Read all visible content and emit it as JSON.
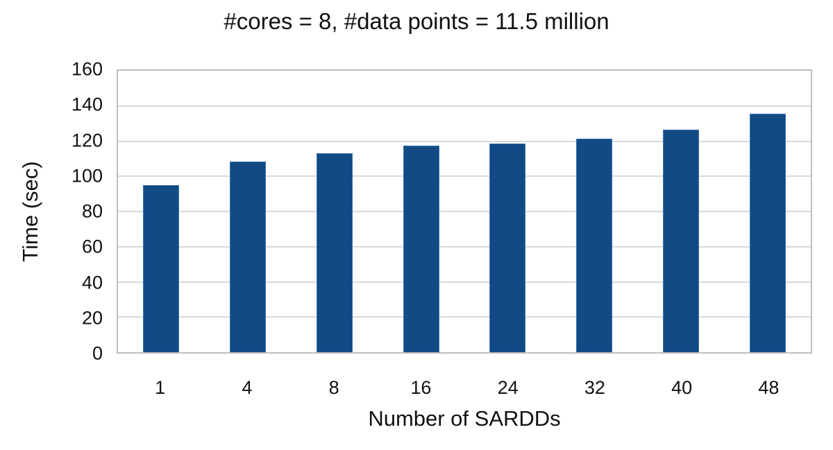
{
  "chart_data": {
    "type": "bar",
    "title": "#cores = 8, #data points = 11.5 million",
    "xlabel": "Number of SARDDs",
    "ylabel": "Time (sec)",
    "categories": [
      "1",
      "4",
      "8",
      "16",
      "24",
      "32",
      "40",
      "48"
    ],
    "values": [
      95,
      108.5,
      113,
      117.5,
      118.5,
      121.5,
      126.5,
      135.5
    ],
    "ylim": [
      0,
      160
    ],
    "ytick_step": 20,
    "ytick_labels": [
      "0",
      "20",
      "40",
      "60",
      "80",
      "100",
      "120",
      "140",
      "160"
    ],
    "grid": "horizontal",
    "legend": "none",
    "colors": {
      "bar_fill": "#114A85",
      "bar_border": "#3F74AD",
      "gridline": "#D9D9D9",
      "plot_border": "#BFBFBF",
      "text": "#111111",
      "background": "#FFFFFF"
    }
  }
}
